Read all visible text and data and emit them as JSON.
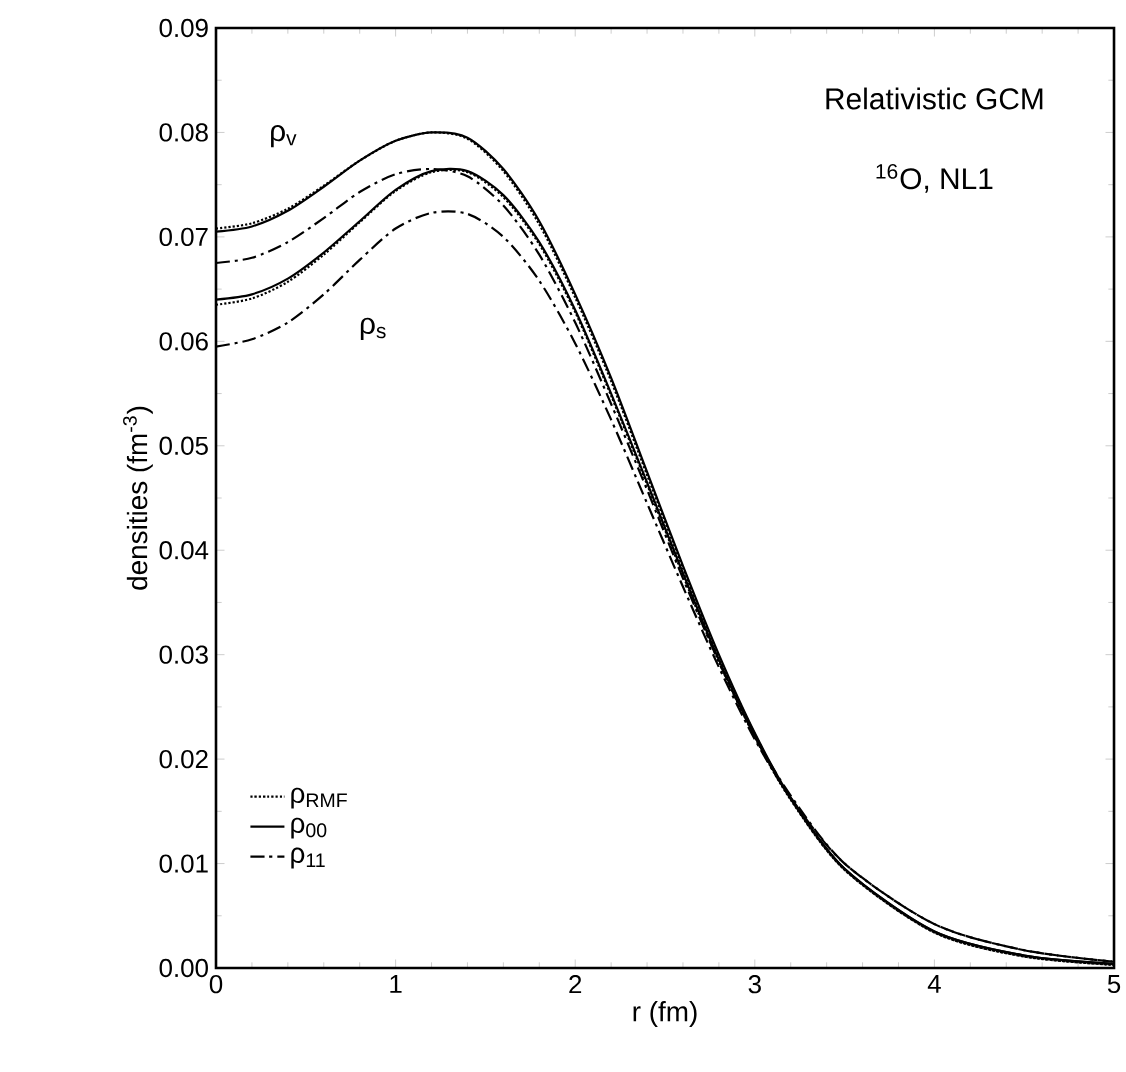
{
  "chart_data": {
    "type": "line",
    "xlabel": "r  (fm)",
    "ylabel": "densities   (fm$^{-3}$)",
    "x": [
      0,
      0.2,
      0.4,
      0.6,
      0.8,
      1.0,
      1.2,
      1.4,
      1.6,
      1.8,
      2.0,
      2.2,
      2.4,
      2.6,
      2.8,
      3.0,
      3.2,
      3.5,
      4.0,
      4.5,
      5.0
    ],
    "series": [
      {
        "name": "ρ$_{RMF}$",
        "color": "#000000",
        "line_style": "dotted",
        "values": [
          0.0708,
          0.0713,
          0.0727,
          0.0749,
          0.0773,
          0.0792,
          0.08,
          0.0794,
          0.0763,
          0.0712,
          0.0642,
          0.0562,
          0.0472,
          0.0383,
          0.0298,
          0.0224,
          0.0162,
          0.0094,
          0.0034,
          0.0011,
          0.0003
        ]
      },
      {
        "name": "ρ$_{00}$",
        "color": "#000000",
        "line_style": "solid",
        "values": [
          0.0705,
          0.071,
          0.0725,
          0.0748,
          0.0773,
          0.0792,
          0.08,
          0.0795,
          0.0765,
          0.0715,
          0.0645,
          0.0565,
          0.0475,
          0.0385,
          0.03,
          0.0225,
          0.0163,
          0.0095,
          0.0035,
          0.0012,
          0.0004
        ]
      },
      {
        "name": "ρ$_{11}$",
        "color": "#000000",
        "line_style": "dashdotted",
        "values": [
          0.0675,
          0.068,
          0.0695,
          0.0718,
          0.0743,
          0.076,
          0.0765,
          0.0758,
          0.073,
          0.0683,
          0.0618,
          0.054,
          0.0458,
          0.0373,
          0.0293,
          0.0222,
          0.0165,
          0.01,
          0.0042,
          0.0017,
          0.0006
        ]
      },
      {
        "color": "#000000",
        "line_style": "dotted",
        "values": [
          0.0635,
          0.0641,
          0.0657,
          0.0683,
          0.0714,
          0.0744,
          0.0762,
          0.0762,
          0.0738,
          0.0693,
          0.0628,
          0.0548,
          0.0463,
          0.0376,
          0.0293,
          0.0221,
          0.0161,
          0.0094,
          0.0034,
          0.0011,
          0.0003
        ]
      },
      {
        "color": "#000000",
        "line_style": "solid",
        "values": [
          0.064,
          0.0645,
          0.066,
          0.0685,
          0.0715,
          0.0745,
          0.0763,
          0.0763,
          0.074,
          0.0695,
          0.063,
          0.055,
          0.0465,
          0.0378,
          0.0295,
          0.0222,
          0.0162,
          0.0095,
          0.0035,
          0.0012,
          0.0004
        ]
      },
      {
        "color": "#000000",
        "line_style": "dashdotted",
        "values": [
          0.0595,
          0.0602,
          0.0618,
          0.0645,
          0.0678,
          0.0708,
          0.0723,
          0.0722,
          0.07,
          0.0658,
          0.0598,
          0.0525,
          0.0445,
          0.0365,
          0.0288,
          0.0219,
          0.0163,
          0.01,
          0.0042,
          0.0017,
          0.0006
        ]
      }
    ],
    "annotations": [
      "Relativistic GCM",
      "$^{16}$O, NL1",
      "ρ$_{v}$",
      "ρ$_{s}$"
    ],
    "xlim": [
      0,
      5
    ],
    "ylim": [
      0,
      0.09
    ],
    "xticks": [
      0,
      1,
      2,
      3,
      4,
      5
    ],
    "yticks": [
      {
        "value": 0,
        "label": "0.00"
      },
      {
        "value": 0.01,
        "label": "0.01"
      },
      {
        "value": 0.02,
        "label": "0.02"
      },
      {
        "value": 0.03,
        "label": "0.03"
      },
      {
        "value": 0.04,
        "label": "0.04"
      },
      {
        "value": 0.05,
        "label": "0.05"
      },
      {
        "value": 0.06,
        "label": "0.06"
      },
      {
        "value": 0.07,
        "label": "0.07"
      },
      {
        "value": 0.08,
        "label": "0.08"
      },
      {
        "value": 0.09,
        "label": "0.09"
      }
    ],
    "legend": "bottom left",
    "grid": false
  }
}
